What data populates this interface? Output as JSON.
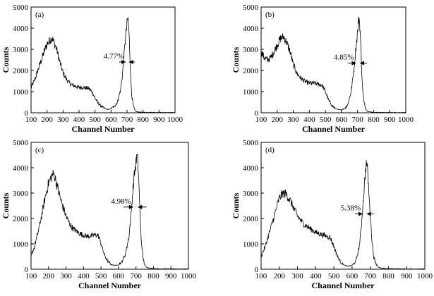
{
  "chart_data": [
    {
      "panel": "(a)",
      "type": "line",
      "xlabel": "Channel Number",
      "ylabel": "Counts",
      "xlim": [
        100,
        1000
      ],
      "ylim": [
        0,
        5000
      ],
      "xticks": [
        100,
        200,
        300,
        400,
        500,
        600,
        700,
        800,
        900,
        1000
      ],
      "yticks": [
        0,
        1000,
        2000,
        3000,
        4000,
        5000
      ],
      "fwhm_label": "4.77%",
      "fwhm_range": [
        650,
        750
      ],
      "fwhm_level": 2400,
      "x": [
        100,
        120,
        140,
        160,
        180,
        200,
        220,
        230,
        240,
        260,
        280,
        300,
        320,
        340,
        360,
        380,
        400,
        420,
        440,
        460,
        480,
        500,
        520,
        540,
        560,
        580,
        600,
        620,
        640,
        660,
        670,
        680,
        690,
        700,
        705,
        710,
        715,
        720,
        725,
        730,
        740,
        750,
        760,
        780,
        800,
        850,
        900,
        950,
        1000
      ],
      "y": [
        1200,
        1500,
        1950,
        2400,
        2850,
        3250,
        3450,
        3550,
        3400,
        3000,
        2400,
        1900,
        1600,
        1400,
        1300,
        1250,
        1200,
        1200,
        1180,
        1150,
        1000,
        700,
        450,
        300,
        200,
        150,
        200,
        300,
        500,
        1100,
        1700,
        2600,
        3500,
        4200,
        4500,
        4100,
        3300,
        2300,
        1400,
        800,
        300,
        120,
        50,
        30,
        20,
        20,
        15,
        10,
        10
      ]
    },
    {
      "panel": "(b)",
      "type": "line",
      "xlabel": "Channel Number",
      "ylabel": "Counts",
      "xlim": [
        100,
        1000
      ],
      "ylim": [
        0,
        5000
      ],
      "xticks": [
        100,
        200,
        300,
        400,
        500,
        600,
        700,
        800,
        900,
        1000
      ],
      "yticks": [
        0,
        1000,
        2000,
        3000,
        4000,
        5000
      ],
      "fwhm_label": "4.85%",
      "fwhm_range": [
        640,
        760
      ],
      "fwhm_level": 2350,
      "x": [
        100,
        120,
        140,
        160,
        180,
        200,
        220,
        240,
        260,
        280,
        300,
        320,
        340,
        360,
        380,
        400,
        420,
        440,
        460,
        480,
        500,
        520,
        540,
        560,
        580,
        600,
        620,
        640,
        660,
        680,
        690,
        700,
        705,
        710,
        715,
        720,
        725,
        730,
        740,
        750,
        760,
        780,
        800,
        850,
        900,
        950,
        1000
      ],
      "y": [
        2900,
        2600,
        2500,
        2600,
        2900,
        3200,
        3500,
        3600,
        3300,
        2900,
        2300,
        1900,
        1700,
        1550,
        1450,
        1400,
        1400,
        1380,
        1350,
        1300,
        1000,
        600,
        350,
        200,
        150,
        140,
        200,
        400,
        1000,
        2200,
        3100,
        3800,
        4300,
        4500,
        4000,
        3200,
        2200,
        1300,
        500,
        200,
        80,
        40,
        20,
        15,
        10,
        10,
        10
      ]
    },
    {
      "panel": "(c)",
      "type": "line",
      "xlabel": "Channel Number",
      "ylabel": "Counts",
      "xlim": [
        100,
        1000
      ],
      "ylim": [
        0,
        5000
      ],
      "xticks": [
        100,
        200,
        300,
        400,
        500,
        600,
        700,
        800,
        900,
        1000
      ],
      "yticks": [
        0,
        1000,
        2000,
        3000,
        4000,
        5000
      ],
      "fwhm_label": "4.98%",
      "fwhm_range": [
        630,
        760
      ],
      "fwhm_level": 2450,
      "x": [
        100,
        120,
        140,
        160,
        180,
        200,
        220,
        230,
        240,
        260,
        280,
        300,
        320,
        340,
        360,
        380,
        400,
        420,
        440,
        460,
        480,
        490,
        500,
        520,
        540,
        560,
        580,
        600,
        620,
        640,
        660,
        670,
        680,
        690,
        700,
        705,
        710,
        715,
        720,
        725,
        730,
        740,
        750,
        760,
        780,
        800,
        850,
        900,
        950,
        1000
      ],
      "y": [
        500,
        900,
        1450,
        2100,
        2800,
        3400,
        3700,
        3750,
        3550,
        3000,
        2500,
        2100,
        1800,
        1600,
        1500,
        1400,
        1350,
        1300,
        1300,
        1350,
        1350,
        1250,
        1000,
        550,
        300,
        180,
        150,
        170,
        300,
        600,
        1300,
        2000,
        2900,
        3700,
        4200,
        4450,
        4300,
        3700,
        2800,
        1900,
        1200,
        450,
        180,
        80,
        40,
        20,
        15,
        10,
        10,
        10
      ]
    },
    {
      "panel": "(d)",
      "type": "line",
      "xlabel": "Channel Number",
      "ylabel": "Counts",
      "xlim": [
        100,
        1000
      ],
      "ylim": [
        0,
        5000
      ],
      "xticks": [
        100,
        200,
        300,
        400,
        500,
        600,
        700,
        800,
        900,
        1000
      ],
      "yticks": [
        0,
        1000,
        2000,
        3000,
        4000,
        5000
      ],
      "fwhm_label": "5.38%",
      "fwhm_range": [
        615,
        720
      ],
      "fwhm_level": 2180,
      "x": [
        100,
        120,
        140,
        160,
        180,
        200,
        220,
        240,
        260,
        280,
        300,
        320,
        340,
        360,
        380,
        400,
        420,
        440,
        460,
        480,
        500,
        520,
        540,
        560,
        580,
        600,
        620,
        640,
        650,
        660,
        670,
        675,
        680,
        685,
        690,
        700,
        710,
        720,
        740,
        760,
        800,
        850,
        900,
        950,
        1000
      ],
      "y": [
        500,
        850,
        1300,
        1800,
        2300,
        2800,
        3000,
        2950,
        2700,
        2400,
        2100,
        1900,
        1750,
        1650,
        1550,
        1450,
        1400,
        1350,
        1300,
        1250,
        900,
        500,
        250,
        150,
        120,
        150,
        300,
        900,
        1600,
        2600,
        3500,
        4000,
        4200,
        3900,
        3300,
        2100,
        1100,
        450,
        100,
        40,
        20,
        15,
        10,
        10,
        10
      ]
    }
  ]
}
